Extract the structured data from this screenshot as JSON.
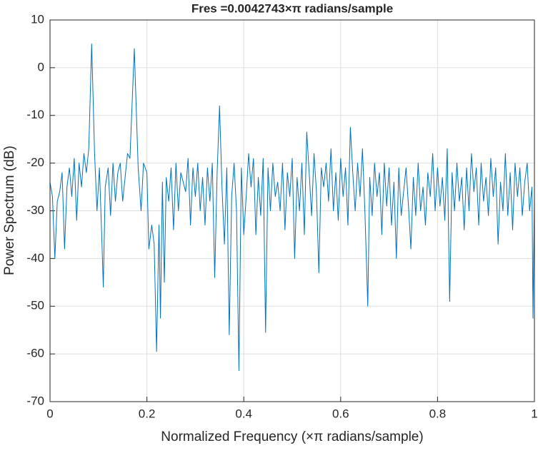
{
  "chart_data": {
    "type": "line",
    "title": "Fres =0.0042743×π radians/sample",
    "xlabel": "Normalized Frequency (×π radians/sample)",
    "ylabel": "Power Spectrum (dB)",
    "color": "#0072bd",
    "grid": true,
    "xlim": [
      0,
      1
    ],
    "xticks": [
      0,
      0.2,
      0.4,
      0.6,
      0.8,
      1
    ],
    "ylim": [
      -70,
      10
    ],
    "yticks": [
      -70,
      -60,
      -50,
      -40,
      -30,
      -20,
      -10,
      0,
      10
    ],
    "x": [
      0,
      0.005,
      0.01,
      0.015,
      0.02,
      0.025,
      0.03,
      0.035,
      0.04,
      0.045,
      0.05,
      0.055,
      0.06,
      0.065,
      0.07,
      0.075,
      0.08,
      0.086,
      0.092,
      0.097,
      0.102,
      0.107,
      0.11,
      0.114,
      0.12,
      0.125,
      0.13,
      0.135,
      0.14,
      0.145,
      0.15,
      0.155,
      0.16,
      0.165,
      0.174,
      0.182,
      0.188,
      0.193,
      0.2,
      0.204,
      0.21,
      0.215,
      0.22,
      0.225,
      0.228,
      0.232,
      0.236,
      0.24,
      0.245,
      0.25,
      0.255,
      0.26,
      0.265,
      0.27,
      0.28,
      0.285,
      0.29,
      0.295,
      0.3,
      0.305,
      0.31,
      0.315,
      0.32,
      0.325,
      0.33,
      0.335,
      0.34,
      0.345,
      0.35,
      0.355,
      0.36,
      0.365,
      0.37,
      0.375,
      0.38,
      0.385,
      0.39,
      0.395,
      0.4,
      0.405,
      0.41,
      0.415,
      0.42,
      0.425,
      0.43,
      0.435,
      0.44,
      0.445,
      0.45,
      0.455,
      0.46,
      0.465,
      0.47,
      0.475,
      0.48,
      0.485,
      0.49,
      0.495,
      0.5,
      0.505,
      0.51,
      0.515,
      0.52,
      0.525,
      0.53,
      0.535,
      0.54,
      0.545,
      0.55,
      0.555,
      0.56,
      0.565,
      0.57,
      0.575,
      0.58,
      0.585,
      0.59,
      0.595,
      0.6,
      0.605,
      0.61,
      0.615,
      0.62,
      0.625,
      0.63,
      0.635,
      0.64,
      0.645,
      0.65,
      0.656,
      0.66,
      0.665,
      0.67,
      0.675,
      0.68,
      0.685,
      0.69,
      0.695,
      0.7,
      0.705,
      0.71,
      0.715,
      0.72,
      0.725,
      0.73,
      0.735,
      0.74,
      0.745,
      0.75,
      0.755,
      0.76,
      0.765,
      0.77,
      0.775,
      0.78,
      0.785,
      0.79,
      0.795,
      0.8,
      0.805,
      0.81,
      0.815,
      0.82,
      0.825,
      0.83,
      0.835,
      0.84,
      0.845,
      0.85,
      0.855,
      0.86,
      0.865,
      0.87,
      0.875,
      0.88,
      0.885,
      0.89,
      0.895,
      0.9,
      0.905,
      0.91,
      0.915,
      0.92,
      0.925,
      0.93,
      0.935,
      0.94,
      0.945,
      0.95,
      0.955,
      0.96,
      0.965,
      0.97,
      0.975,
      0.98,
      0.985,
      0.99,
      0.995,
      0.997,
      1
    ],
    "values": [
      -24,
      -27,
      -40,
      -28,
      -26,
      -22,
      -38,
      -25,
      -21,
      -27,
      -19,
      -32,
      -20,
      -25,
      -18,
      -22,
      -17,
      5,
      -18,
      -30,
      -21,
      -36,
      -46,
      -25,
      -21,
      -31,
      -20,
      -28,
      -22,
      -20,
      -28,
      -23,
      -18,
      -19,
      4,
      -21,
      -30,
      -20,
      -22,
      -38,
      -33,
      -37,
      -59.5,
      -33,
      -52.5,
      -24,
      -45,
      -23,
      -28,
      -21,
      -34,
      -20,
      -30,
      -22,
      -26,
      -19,
      -33,
      -21,
      -27,
      -20,
      -30,
      -23,
      -33,
      -21,
      -28,
      -20,
      -44,
      -22,
      -8,
      -25,
      -37,
      -21,
      -56,
      -27,
      -20,
      -30,
      -63.5,
      -21,
      -35,
      -27,
      -18,
      -25,
      -19,
      -35,
      -23,
      -31,
      -19,
      -55.5,
      -21,
      -30,
      -20,
      -27,
      -24,
      -30,
      -20,
      -34,
      -22,
      -27,
      -19,
      -40,
      -23,
      -30,
      -20,
      -35,
      -13.5,
      -22,
      -31,
      -18,
      -26,
      -43,
      -21,
      -25,
      -20,
      -28,
      -17,
      -30,
      -22,
      -32,
      -19,
      -27,
      -21,
      -33,
      -12.5,
      -22,
      -30,
      -20,
      -27,
      -17,
      -30,
      -50,
      -23,
      -31,
      -20,
      -27,
      -22,
      -35,
      -20,
      -29,
      -21,
      -33,
      -24,
      -40,
      -21,
      -31,
      -26,
      -21,
      -29,
      -38,
      -23,
      -31,
      -20,
      -30,
      -25,
      -33,
      -22,
      -27,
      -18,
      -30,
      -21,
      -29,
      -23,
      -32,
      -17,
      -49,
      -22,
      -30,
      -20,
      -28,
      -23,
      -34,
      -21,
      -30,
      -18,
      -26,
      -21,
      -33,
      -20,
      -28,
      -23,
      -31,
      -19,
      -27,
      -21,
      -37,
      -24,
      -30,
      -18,
      -31,
      -22,
      -34,
      -20,
      -27,
      -21,
      -31,
      -24,
      -20,
      -30,
      -25,
      -52.5,
      -27
    ]
  }
}
